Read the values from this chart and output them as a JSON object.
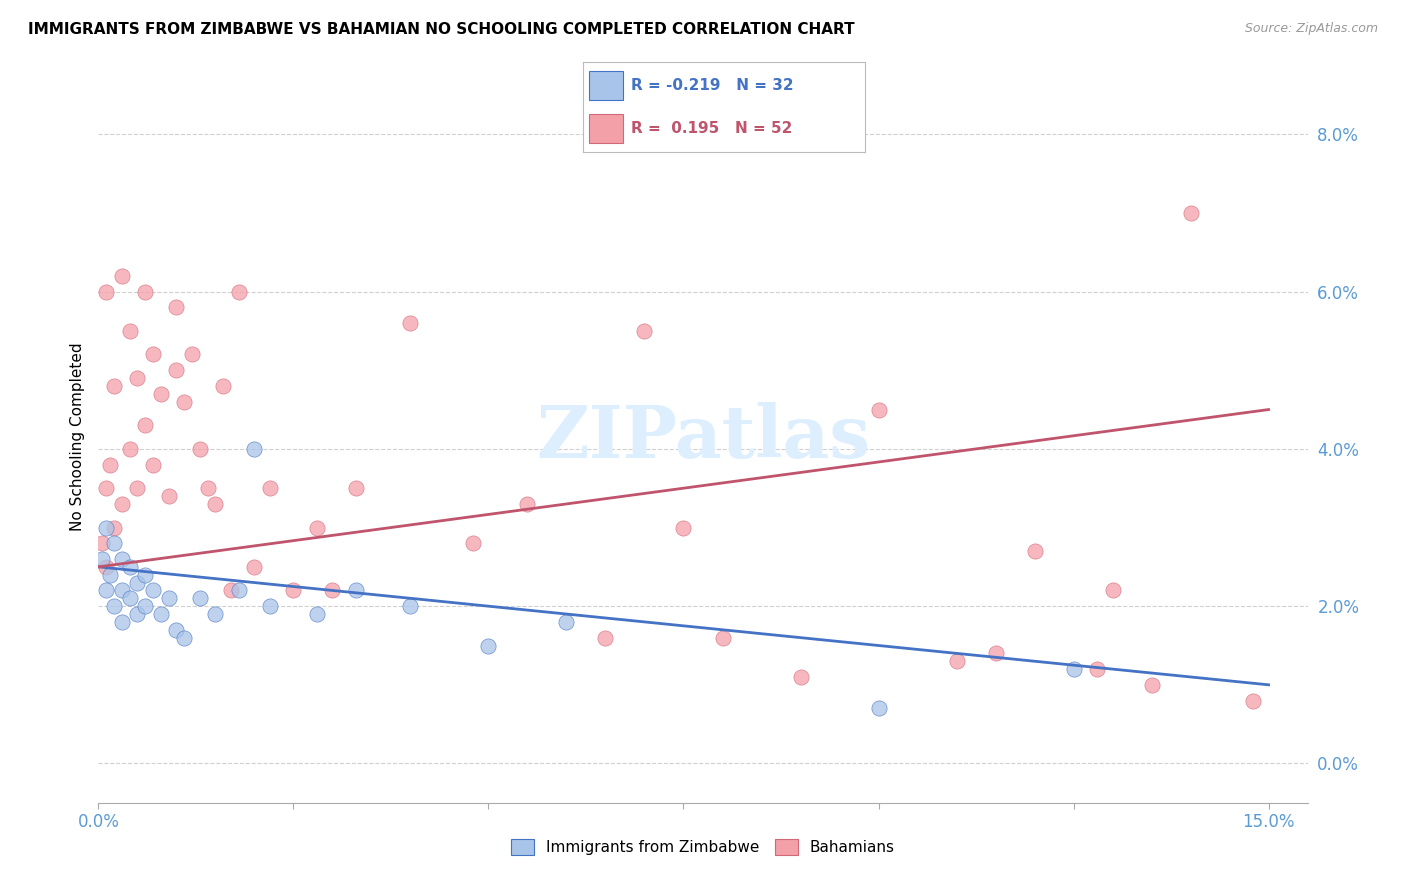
{
  "title": "IMMIGRANTS FROM ZIMBABWE VS BAHAMIAN NO SCHOOLING COMPLETED CORRELATION CHART",
  "source": "Source: ZipAtlas.com",
  "ylabel": "No Schooling Completed",
  "legend_label1": "Immigrants from Zimbabwe",
  "legend_label2": "Bahamians",
  "blue_color": "#a8c4e8",
  "pink_color": "#f4a0a8",
  "blue_line_color": "#4472c4",
  "pink_line_color": "#c0546c",
  "tick_color": "#5b9bd5",
  "grid_color": "#d0d0d0",
  "watermark": "ZIPatlas",
  "watermark_color": "#ddeeff",
  "blue_line_x0": 0.0,
  "blue_line_y0": 0.025,
  "blue_line_x1": 0.15,
  "blue_line_y1": 0.01,
  "pink_line_x0": 0.0,
  "pink_line_y0": 0.025,
  "pink_line_x1": 0.15,
  "pink_line_y1": 0.045,
  "xlim": [
    0.0,
    0.155
  ],
  "ylim": [
    -0.005,
    0.088
  ],
  "yticks": [
    0.0,
    0.02,
    0.04,
    0.06,
    0.08
  ],
  "xticks": [
    0.0,
    0.025,
    0.05,
    0.075,
    0.1,
    0.125,
    0.15
  ],
  "blue_x": [
    0.0005,
    0.001,
    0.001,
    0.0015,
    0.002,
    0.002,
    0.003,
    0.003,
    0.003,
    0.004,
    0.004,
    0.005,
    0.005,
    0.006,
    0.006,
    0.007,
    0.008,
    0.009,
    0.01,
    0.011,
    0.013,
    0.015,
    0.018,
    0.02,
    0.022,
    0.028,
    0.033,
    0.04,
    0.05,
    0.06,
    0.1,
    0.125
  ],
  "blue_y": [
    0.026,
    0.022,
    0.03,
    0.024,
    0.02,
    0.028,
    0.018,
    0.022,
    0.026,
    0.021,
    0.025,
    0.019,
    0.023,
    0.02,
    0.024,
    0.022,
    0.019,
    0.021,
    0.017,
    0.016,
    0.021,
    0.019,
    0.022,
    0.04,
    0.02,
    0.019,
    0.022,
    0.02,
    0.015,
    0.018,
    0.007,
    0.012
  ],
  "pink_x": [
    0.0005,
    0.001,
    0.001,
    0.001,
    0.0015,
    0.002,
    0.002,
    0.003,
    0.003,
    0.004,
    0.004,
    0.005,
    0.005,
    0.006,
    0.006,
    0.007,
    0.007,
    0.008,
    0.009,
    0.01,
    0.01,
    0.011,
    0.012,
    0.013,
    0.014,
    0.015,
    0.016,
    0.017,
    0.018,
    0.02,
    0.022,
    0.025,
    0.028,
    0.03,
    0.033,
    0.04,
    0.048,
    0.055,
    0.065,
    0.07,
    0.075,
    0.08,
    0.09,
    0.1,
    0.11,
    0.115,
    0.12,
    0.128,
    0.13,
    0.135,
    0.14,
    0.148
  ],
  "pink_y": [
    0.028,
    0.025,
    0.035,
    0.06,
    0.038,
    0.03,
    0.048,
    0.033,
    0.062,
    0.04,
    0.055,
    0.035,
    0.049,
    0.043,
    0.06,
    0.052,
    0.038,
    0.047,
    0.034,
    0.05,
    0.058,
    0.046,
    0.052,
    0.04,
    0.035,
    0.033,
    0.048,
    0.022,
    0.06,
    0.025,
    0.035,
    0.022,
    0.03,
    0.022,
    0.035,
    0.056,
    0.028,
    0.033,
    0.016,
    0.055,
    0.03,
    0.016,
    0.011,
    0.045,
    0.013,
    0.014,
    0.027,
    0.012,
    0.022,
    0.01,
    0.07,
    0.008
  ]
}
